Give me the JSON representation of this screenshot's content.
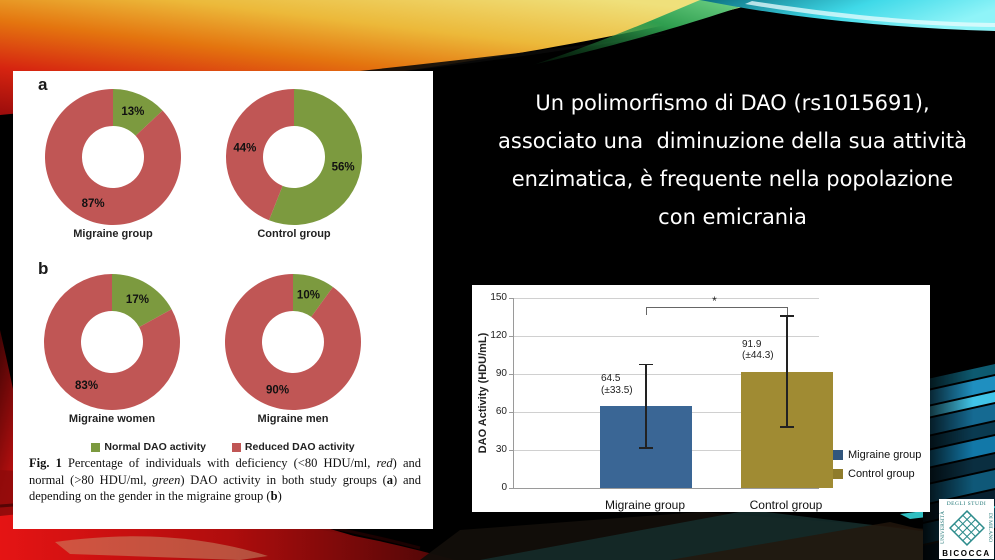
{
  "headline": {
    "lines": [
      "Un polimorfismo di DAO (rs1015691),",
      "associato una  diminuzione della sua attività",
      "enzimatica, è frequente nella popolazione",
      "con emicrania"
    ]
  },
  "figure_panel": {
    "panel_a_label": "a",
    "panel_b_label": "b",
    "legend": [
      {
        "label": "Normal DAO activity",
        "color": "#7C9A3F"
      },
      {
        "label": "Reduced DAO activity",
        "color": "#C05655"
      }
    ],
    "caption_segments": [
      {
        "t": "Fig. 1",
        "b": true
      },
      {
        "t": "  Percentage of individuals with deficiency (<80 HDU/ml, "
      },
      {
        "t": "red",
        "i": true
      },
      {
        "t": ") and normal (>80 HDU/ml, "
      },
      {
        "t": "green",
        "i": true
      },
      {
        "t": ") DAO activity in both study groups ("
      },
      {
        "t": "a",
        "b": true
      },
      {
        "t": ") and depending on the gender in the migraine group ("
      },
      {
        "t": "b",
        "b": true
      },
      {
        "t": ")"
      }
    ]
  },
  "chart_data": [
    {
      "type": "pie",
      "variant": "donut",
      "panel": "a",
      "title": "Migraine group",
      "slices": [
        {
          "label": "Normal DAO activity",
          "value": 13,
          "text": "13%",
          "color": "#7C9A3F"
        },
        {
          "label": "Reduced DAO activity",
          "value": 87,
          "text": "87%",
          "color": "#C05655"
        }
      ]
    },
    {
      "type": "pie",
      "variant": "donut",
      "panel": "a",
      "title": "Control group",
      "slices": [
        {
          "label": "Normal DAO activity",
          "value": 56,
          "text": "56%",
          "color": "#7C9A3F"
        },
        {
          "label": "Reduced DAO activity",
          "value": 44,
          "text": "44%",
          "color": "#C05655"
        }
      ]
    },
    {
      "type": "pie",
      "variant": "donut",
      "panel": "b",
      "title": "Migraine women",
      "slices": [
        {
          "label": "Normal DAO activity",
          "value": 17,
          "text": "17%",
          "color": "#7C9A3F"
        },
        {
          "label": "Reduced DAO activity",
          "value": 83,
          "text": "83%",
          "color": "#C05655"
        }
      ]
    },
    {
      "type": "pie",
      "variant": "donut",
      "panel": "b",
      "title": "Migraine men",
      "slices": [
        {
          "label": "Normal DAO activity",
          "value": 10,
          "text": "10%",
          "color": "#7C9A3F"
        },
        {
          "label": "Reduced DAO activity",
          "value": 90,
          "text": "90%",
          "color": "#C05655"
        }
      ]
    },
    {
      "type": "bar",
      "ylabel": "DAO Activity (HDU/mL)",
      "ylim": [
        0,
        150
      ],
      "yticks": [
        0,
        30,
        60,
        90,
        120,
        150
      ],
      "categories": [
        "Migraine group",
        "Control group"
      ],
      "bars": [
        {
          "category": "Migraine group",
          "value": 64.5,
          "error": 33.5,
          "label": "64.5\n(±33.5)",
          "color": "#3A6695"
        },
        {
          "category": "Control group",
          "value": 91.9,
          "error": 44.3,
          "label": "91.9\n(±44.3)",
          "color": "#A08B33"
        }
      ],
      "legend": [
        {
          "label": "Migraine group",
          "color": "#31567D"
        },
        {
          "label": "Control group",
          "color": "#8F7C2B"
        }
      ],
      "significance": {
        "symbol": "*",
        "bracket_y": 143
      },
      "grid": true,
      "legend_position": "right"
    }
  ],
  "logo": {
    "top": "DEGLI STUDI",
    "left": "UNIVERSITÀ",
    "right": "DI MILANO",
    "bottom": "BICOCCA"
  }
}
